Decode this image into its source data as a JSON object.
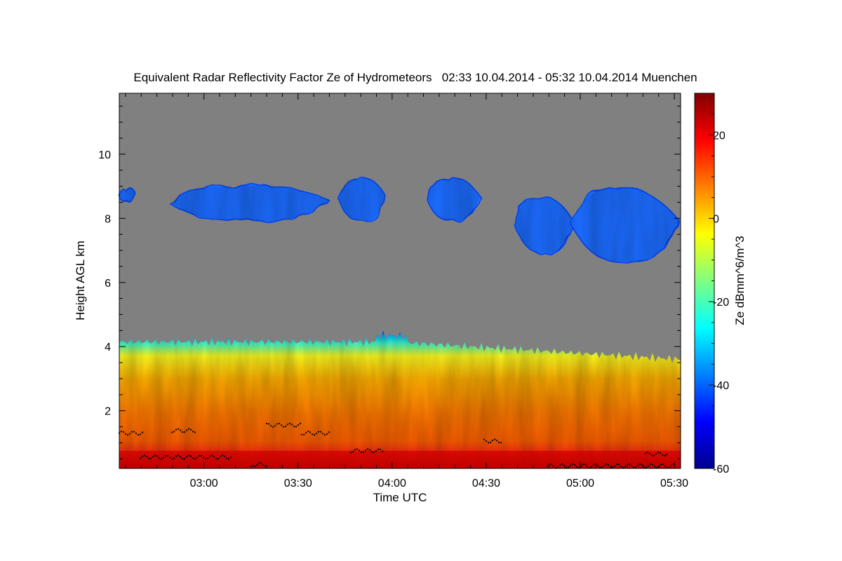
{
  "chart_data": {
    "type": "heatmap",
    "title": "Equivalent Radar Reflectivity Factor Ze of Hydrometeors   02:33 10.04.2014 - 05:32 10.04.2014 Muenchen",
    "xlabel": "Time UTC",
    "ylabel": "Height AGL km",
    "colorbar_label": "Ze dBmm^6/m^3",
    "x_range": [
      "02:33",
      "05:32"
    ],
    "x_ticks": [
      "03:00",
      "03:30",
      "04:00",
      "04:30",
      "05:00",
      "05:30"
    ],
    "ylim": [
      0.2,
      11.9
    ],
    "y_ticks": [
      2,
      4,
      6,
      8,
      10
    ],
    "colorbar_range": [
      -60,
      30
    ],
    "colorbar_ticks": [
      20,
      0,
      -20,
      -40,
      -60
    ],
    "no_data_color": "#808080",
    "colormap": [
      "#00008f",
      "#0000ff",
      "#0080ff",
      "#00ffff",
      "#80ff80",
      "#ffff00",
      "#ff8000",
      "#ff0000",
      "#800000"
    ],
    "layers": [
      {
        "name": "boundary-layer",
        "base_km": 0.2,
        "top_km": 4.4,
        "ze_range_dbz": [
          -40,
          25
        ]
      },
      {
        "name": "upper-cloud",
        "base_km": 6.6,
        "top_km": 9.2,
        "ze_range_dbz": [
          -45,
          -30
        ]
      }
    ],
    "upper_cloud_patches": [
      {
        "start": "02:33",
        "end": "02:38",
        "base_km": 8.5,
        "top_km": 8.95
      },
      {
        "start": "02:49",
        "end": "03:40",
        "base_km": 7.9,
        "top_km": 9.05
      },
      {
        "start": "03:43",
        "end": "03:58",
        "base_km": 7.9,
        "top_km": 9.3
      },
      {
        "start": "04:11",
        "end": "04:28",
        "base_km": 7.9,
        "top_km": 9.3
      },
      {
        "start": "04:39",
        "end": "04:58",
        "base_km": 6.9,
        "top_km": 8.7
      },
      {
        "start": "04:57",
        "end": "05:32",
        "base_km": 6.6,
        "top_km": 9.0
      }
    ],
    "cloud_base_points_km": [
      1.3,
      1.5,
      0.9,
      0.3
    ]
  }
}
